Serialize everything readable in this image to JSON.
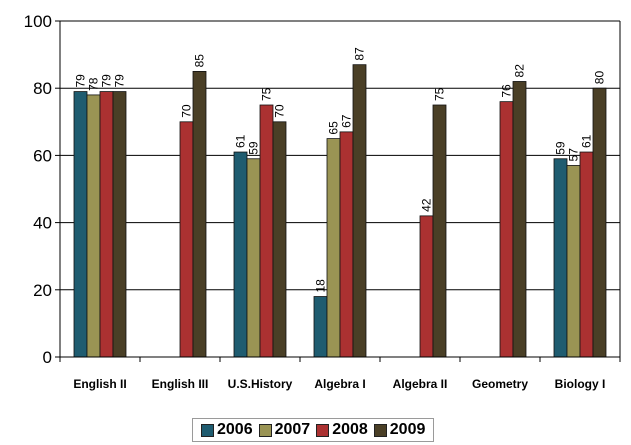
{
  "chart_data": {
    "type": "bar",
    "categories": [
      "English II",
      "English III",
      "U.S.History",
      "Algebra I",
      "Algebra II",
      "Geometry",
      "Biology I"
    ],
    "series": [
      {
        "name": "2006",
        "color": "#1f5c70",
        "values": [
          79,
          null,
          61,
          18,
          null,
          null,
          59
        ]
      },
      {
        "name": "2007",
        "color": "#9a9454",
        "values": [
          78,
          null,
          59,
          65,
          null,
          null,
          57
        ]
      },
      {
        "name": "2008",
        "color": "#ab3131",
        "values": [
          79,
          70,
          75,
          67,
          42,
          76,
          61
        ]
      },
      {
        "name": "2009",
        "color": "#4a3f26",
        "values": [
          79,
          85,
          70,
          87,
          75,
          82,
          80
        ]
      }
    ],
    "yticks": [
      0,
      20,
      40,
      60,
      80,
      100
    ],
    "ylim": [
      0,
      100
    ],
    "grid": true,
    "legend_position": "bottom",
    "title": "",
    "xlabel": "",
    "ylabel": ""
  }
}
